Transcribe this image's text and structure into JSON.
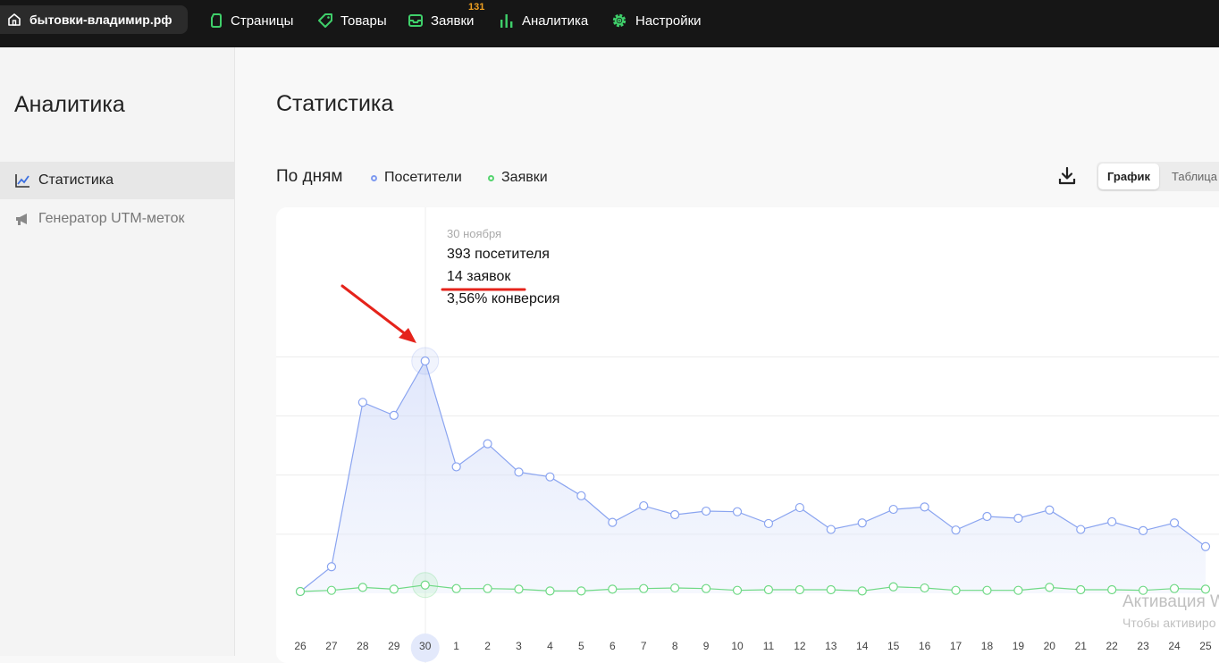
{
  "topbar": {
    "site_name": "бытовки-владимир.рф",
    "nav": [
      {
        "label": "Страницы",
        "icon": "page-icon"
      },
      {
        "label": "Товары",
        "icon": "tag-icon"
      },
      {
        "label": "Заявки",
        "icon": "inbox-icon",
        "badge": "131"
      },
      {
        "label": "Аналитика",
        "icon": "bar-chart-icon"
      },
      {
        "label": "Настройки",
        "icon": "gear-icon"
      }
    ],
    "accent_color": "#3fcf6a",
    "badge_color": "#f0a020"
  },
  "sidebar": {
    "title": "Аналитика",
    "items": [
      {
        "label": "Статистика",
        "icon": "line-chart-icon",
        "active": true
      },
      {
        "label": "Генератор UTM-меток",
        "icon": "megaphone-icon",
        "active": false
      }
    ]
  },
  "main": {
    "title": "Статистика",
    "period_label": "По дням",
    "legend": [
      {
        "label": "Посетители",
        "color": "#7f9bf0"
      },
      {
        "label": "Заявки",
        "color": "#55d46f"
      }
    ],
    "view_toggle": {
      "chart": "График",
      "table": "Таблица",
      "active": "chart"
    },
    "download_icon": "download-icon"
  },
  "tooltip": {
    "date": "30 ноября",
    "visitors": "393 посетителя",
    "leads": "14 заявок",
    "conversion": "3,56% конверсия"
  },
  "chart_data": {
    "type": "line",
    "x": [
      "26",
      "27",
      "28",
      "29",
      "30",
      "1",
      "2",
      "3",
      "4",
      "5",
      "6",
      "7",
      "8",
      "9",
      "10",
      "11",
      "12",
      "13",
      "14",
      "15",
      "16",
      "17",
      "18",
      "19",
      "20",
      "21",
      "22",
      "23",
      "24",
      "25"
    ],
    "highlighted_x": "30",
    "series": [
      {
        "name": "Посетители",
        "color": "#7f9bf0",
        "values": [
          3,
          45,
          323,
          301,
          393,
          214,
          253,
          205,
          197,
          165,
          120,
          148,
          133,
          139,
          138,
          118,
          145,
          108,
          119,
          142,
          146,
          107,
          130,
          127,
          141,
          108,
          121,
          106,
          119,
          79
        ]
      },
      {
        "name": "Заявки",
        "color": "#55d46f",
        "values": [
          3,
          5,
          10,
          7,
          14,
          8,
          8,
          7,
          4,
          4,
          7,
          8,
          9,
          8,
          5,
          6,
          6,
          6,
          4,
          11,
          9,
          5,
          5,
          5,
          10,
          6,
          6,
          5,
          8,
          7
        ]
      }
    ]
  },
  "watermark": {
    "line1": "Активация W",
    "line2": "Чтобы активиро"
  }
}
